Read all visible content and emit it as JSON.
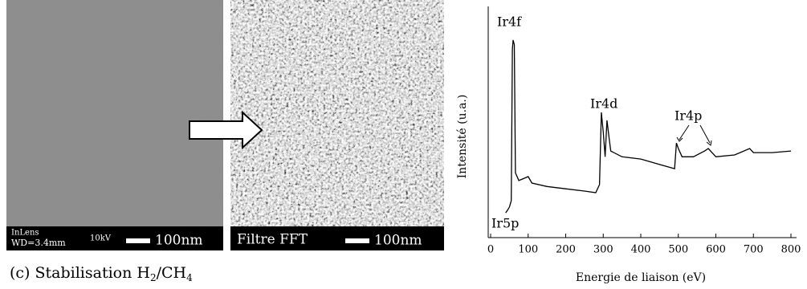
{
  "figure": {
    "images": [
      {
        "lines": [
          "InLens",
          "WD=3.4mm"
        ],
        "voltage": "10kV",
        "scale": "100nm"
      },
      {
        "label": "Filtre FFT",
        "scale": "100nm"
      }
    ],
    "caption": [
      "(c) Stabilisation H",
      "2",
      "/CH",
      "4"
    ]
  },
  "chart_data": {
    "type": "line",
    "x_label": "Energie de liaison (eV)",
    "y_label": "Intensité (u.a.)",
    "annotations": [
      "Ir4f",
      "Ir4d",
      "Ir4p",
      "Ir5p"
    ],
    "x": [
      40,
      45,
      50,
      55,
      58,
      60,
      63,
      66,
      75,
      90,
      100,
      110,
      150,
      200,
      250,
      280,
      290,
      295,
      300,
      305,
      310,
      315,
      320,
      350,
      400,
      450,
      490,
      495,
      500,
      510,
      540,
      570,
      580,
      600,
      650,
      690,
      700,
      750,
      800
    ],
    "values": [
      10.5,
      11.6,
      13,
      15.8,
      82,
      86,
      84,
      28,
      24.6,
      25.6,
      26.3,
      23.5,
      22,
      21,
      20,
      19.3,
      22.8,
      54.4,
      45.6,
      35,
      50.9,
      43.9,
      37.5,
      35,
      34,
      31.6,
      29.8,
      41,
      38.6,
      35,
      35,
      37.5,
      38.6,
      35,
      35.8,
      38.6,
      36.8,
      36.8,
      37.5
    ],
    "color": "#000000",
    "xlim": [
      0,
      800
    ],
    "ylim": [
      0,
      100
    ],
    "xticks": [
      0,
      100,
      200,
      300,
      400,
      500,
      600,
      700,
      800
    ]
  }
}
